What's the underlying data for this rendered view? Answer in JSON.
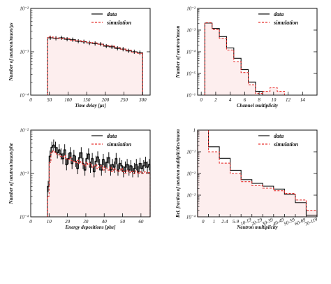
{
  "chart_data": [
    {
      "type": "line",
      "xlabel": "Time delay [μs]",
      "ylabel": "Number of neutron/muon/μs",
      "xlim": [
        0,
        320
      ],
      "ylim": [
        0.0001,
        0.01
      ],
      "yscale": "log",
      "xticks": [
        "0",
        "50",
        "100",
        "150",
        "200",
        "250",
        "300"
      ],
      "yticks": [
        "10⁻⁴",
        "10⁻³",
        "10⁻²"
      ],
      "legend": {
        "position": "top-right",
        "entries": [
          "data",
          "simulation"
        ]
      },
      "x_edges": [
        45,
        60,
        75,
        90,
        105,
        120,
        135,
        150,
        165,
        180,
        195,
        210,
        225,
        240,
        255,
        270,
        285,
        300
      ],
      "series": [
        {
          "name": "data",
          "style": "solid-black",
          "values": [
            0.0021,
            0.00205,
            0.0021,
            0.00195,
            0.0019,
            0.00175,
            0.0017,
            0.0016,
            0.00155,
            0.0015,
            0.00135,
            0.0013,
            0.0012,
            0.00115,
            0.00105,
            0.001,
            0.00095
          ]
        },
        {
          "name": "simulation",
          "style": "dashed-red",
          "values": [
            0.0022,
            0.0021,
            0.002,
            0.002,
            0.00185,
            0.0018,
            0.00172,
            0.00165,
            0.0016,
            0.0015,
            0.0014,
            0.00135,
            0.00125,
            0.00115,
            0.00108,
            0.00098,
            0.00092
          ]
        }
      ]
    },
    {
      "type": "line",
      "xlabel": "Channel multiplicity",
      "ylabel": "Number of neutron/muon",
      "xlim": [
        -0.5,
        16
      ],
      "ylim": [
        1e-06,
        0.01
      ],
      "yscale": "log",
      "xticks": [
        "0",
        "2",
        "4",
        "6",
        "8",
        "10",
        "12",
        "14"
      ],
      "yticks": [
        "10⁻⁶",
        "10⁻⁵",
        "10⁻⁴",
        "10⁻³",
        "10⁻²"
      ],
      "legend": {
        "position": "top-right",
        "entries": [
          "data",
          "simulation"
        ]
      },
      "x_edges": [
        0.5,
        1.5,
        2.5,
        3.5,
        4.5,
        5.5,
        6.5,
        7.5,
        8.5,
        9.5,
        10.5,
        11.5
      ],
      "series": [
        {
          "name": "data",
          "style": "solid-black",
          "values": [
            0.0021,
            0.0012,
            0.0005,
            0.00015,
            5e-05,
            1.5e-05,
            4e-06,
            1.5e-06
          ]
        },
        {
          "name": "simulation",
          "style": "dashed-red",
          "values": [
            0.0022,
            0.00105,
            0.00042,
            0.00012,
            3.5e-05,
            1.1e-05,
            3e-06,
            1.2e-06,
            1.5e-06,
            2.2e-06,
            1.5e-06
          ]
        }
      ]
    },
    {
      "type": "line",
      "xlabel": "Energy depositions [phe]",
      "ylabel": "Number of neutron/muon/phe",
      "xlim": [
        0,
        65
      ],
      "ylim": [
        0.0001,
        0.01
      ],
      "yscale": "log",
      "xticks": [
        "0",
        "10",
        "20",
        "30",
        "40",
        "50",
        "60"
      ],
      "yticks": [
        "10⁻⁴",
        "10⁻³",
        "10⁻²"
      ],
      "legend": {
        "position": "top-right",
        "entries": [
          "data",
          "simulation"
        ]
      },
      "x_edges": [
        9,
        10,
        11,
        12,
        13,
        14,
        15,
        16,
        17,
        18,
        19,
        20,
        21,
        22,
        23,
        24,
        25,
        26,
        27,
        28,
        29,
        30,
        31,
        32,
        33,
        34,
        35,
        36,
        37,
        38,
        39,
        40,
        41,
        42,
        43,
        44,
        45,
        46,
        47,
        48,
        49,
        50,
        51,
        52,
        53,
        54,
        55,
        56,
        57,
        58,
        59,
        60,
        61,
        62,
        63,
        64,
        65
      ],
      "series": [
        {
          "name": "data",
          "style": "solid-black",
          "values": [
            0.0005,
            0.0025,
            0.004,
            0.0045,
            0.004,
            0.003,
            0.0035,
            0.0028,
            0.0022,
            0.0035,
            0.0016,
            0.0022,
            0.003,
            0.0017,
            0.0026,
            0.0019,
            0.0013,
            0.0023,
            0.003,
            0.0017,
            0.0012,
            0.0022,
            0.0028,
            0.0014,
            0.0022,
            0.0011,
            0.0019,
            0.0024,
            0.0016,
            0.0012,
            0.0021,
            0.0014,
            0.0018,
            0.0023,
            0.0012,
            0.0016,
            0.0014,
            0.0022,
            0.0012,
            0.0017,
            0.0015,
            0.0011,
            0.0014,
            0.0016,
            0.0012,
            0.0015,
            0.0011,
            0.0013,
            0.0016,
            0.0011,
            0.0017,
            0.0013,
            0.0015,
            0.0018,
            0.0014,
            0.0016
          ]
        },
        {
          "name": "simulation",
          "style": "dashed-red",
          "values": [
            0.0003,
            0.0018,
            0.003,
            0.0033,
            0.0031,
            0.0028,
            0.0027,
            0.0025,
            0.0024,
            0.0026,
            0.0022,
            0.0021,
            0.0023,
            0.002,
            0.0019,
            0.0018,
            0.002,
            0.0017,
            0.0019,
            0.0016,
            0.0015,
            0.0018,
            0.0016,
            0.0017,
            0.0014,
            0.0015,
            0.0016,
            0.0013,
            0.0014,
            0.0015,
            0.0012,
            0.0014,
            0.0013,
            0.0012,
            0.0014,
            0.0011,
            0.0013,
            0.0012,
            0.0011,
            0.0012,
            0.0013,
            0.0011,
            0.001,
            0.0012,
            0.0011,
            0.00105,
            0.0011,
            0.001,
            0.00115,
            0.001,
            0.0011,
            0.00105,
            0.001,
            0.0011,
            0.001,
            0.00105
          ]
        }
      ]
    },
    {
      "type": "line",
      "xlabel": "Neutron multiplicity",
      "ylabel": "Rel. fraction of neutron multiplicities/muon",
      "ylim": [
        0.0001,
        1
      ],
      "yscale": "log",
      "categories": [
        "0",
        "1",
        "2-4",
        "5-9",
        "10-19",
        "20-29",
        "30-39",
        "40-49",
        "50-59",
        "60-69",
        "70-119"
      ],
      "yticks": [
        "10⁻⁴",
        "10⁻³",
        "10⁻²",
        "10⁻¹",
        "1"
      ],
      "legend": {
        "position": "top-right",
        "entries": [
          "data",
          "simulation"
        ]
      },
      "series": [
        {
          "name": "data",
          "style": "solid-black",
          "values": [
            1.0,
            0.17,
            0.05,
            0.014,
            0.0052,
            0.0035,
            0.0026,
            0.0019,
            0.0011,
            0.00045,
            0.00012
          ]
        },
        {
          "name": "simulation",
          "style": "dashed-red",
          "values": [
            1.0,
            0.1,
            0.03,
            0.01,
            0.0042,
            0.0028,
            0.0021,
            0.0016,
            0.0012,
            0.0006,
            0.0002
          ]
        }
      ]
    }
  ]
}
